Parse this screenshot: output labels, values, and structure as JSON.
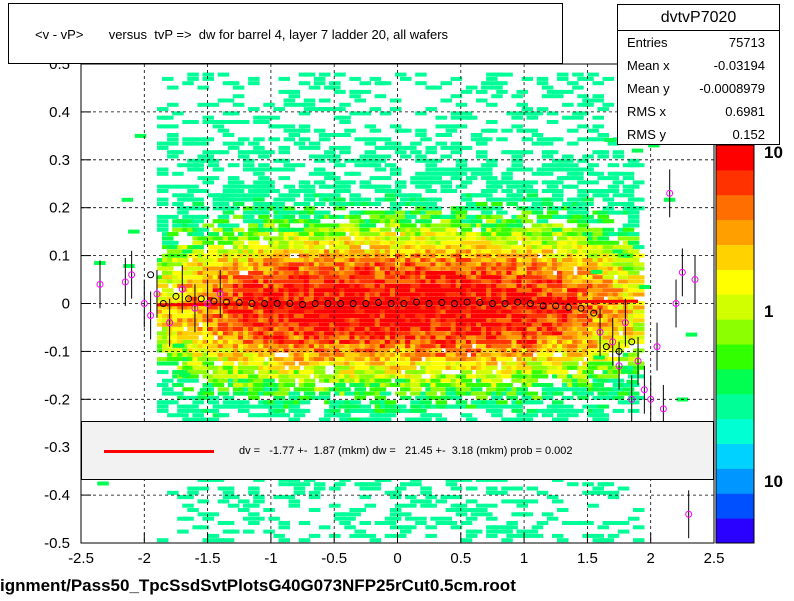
{
  "title": "<v - vP>       versus  tvP =>  dw for barrel 4, layer 7 ladder 20, all wafers",
  "footer": "ignment/Pass50_TpcSsdSvtPlotsG40G073NFP25rCut0.5cm.root",
  "stats": {
    "name": "dvtvP7020",
    "rows": [
      {
        "label": "Entries",
        "value": "75713"
      },
      {
        "label": "Mean x",
        "value": "-0.03194"
      },
      {
        "label": "Mean y",
        "value": "-0.0008979"
      },
      {
        "label": "RMS x",
        "value": "0.6981"
      },
      {
        "label": "RMS y",
        "value": "0.152"
      }
    ]
  },
  "fit_legend": {
    "text": "dv =   -1.77 +-  1.87 (mkm) dw =   21.45 +-  3.18 (mkm) prob = 0.002",
    "line_color": "#ff0000"
  },
  "chart_data": {
    "type": "heatmap",
    "title": "<v - vP>       versus  tvP =>  dw for barrel 4, layer 7 ladder 20, all wafers",
    "xlim": [
      -2.5,
      2.5
    ],
    "ylim": [
      -0.5,
      0.5
    ],
    "x_ticks": [
      "-2.5",
      "-2",
      "-1.5",
      "-1",
      "-0.5",
      "0",
      "0.5",
      "1",
      "1.5",
      "2",
      "2.5"
    ],
    "y_ticks": [
      "-0.5",
      "-0.4",
      "-0.3",
      "-0.2",
      "-0.1",
      "0",
      "0.1",
      "0.2",
      "0.3",
      "0.4",
      "0.5"
    ],
    "grid": true,
    "colorbar": {
      "scale": "log",
      "tick_labels": [
        "10",
        "1",
        "10"
      ]
    },
    "density": {
      "x_range": [
        -1.9,
        1.9
      ],
      "y_center": 0.0,
      "y_rms": 0.152
    },
    "fit_line": {
      "x": [
        -1.9,
        1.9
      ],
      "y": [
        -0.003,
        0.005
      ],
      "color": "#ff0000"
    },
    "profile_black": {
      "x": [
        -1.95,
        -1.85,
        -1.75,
        -1.65,
        -1.55,
        -1.45,
        -1.35,
        -1.25,
        -1.15,
        -1.05,
        -0.95,
        -0.85,
        -0.75,
        -0.65,
        -0.55,
        -0.45,
        -0.35,
        -0.25,
        -0.15,
        -0.05,
        0.05,
        0.15,
        0.25,
        0.35,
        0.45,
        0.55,
        0.65,
        0.75,
        0.85,
        0.95,
        1.05,
        1.15,
        1.25,
        1.35,
        1.45,
        1.55,
        1.65,
        1.75,
        1.85
      ],
      "y": [
        0.06,
        0.0,
        0.015,
        0.01,
        0.01,
        0.005,
        0.003,
        0.002,
        0.0,
        0.0,
        0.0,
        0.0,
        -0.002,
        0.0,
        0.0,
        0.0,
        0.0,
        0.0,
        0.002,
        0.0,
        0.0,
        0.003,
        0.0,
        0.002,
        0.0,
        0.003,
        0.002,
        0.0,
        0.0,
        0.003,
        0.0,
        -0.005,
        -0.005,
        -0.008,
        -0.01,
        -0.02,
        -0.09,
        -0.1,
        -0.08
      ]
    },
    "profile_magenta": {
      "x": [
        -2.35,
        -2.15,
        -2.1,
        -2.0,
        -1.95,
        -1.9,
        -1.8,
        -1.7,
        -1.6,
        -1.5,
        -1.4,
        1.6,
        1.7,
        1.75,
        1.8,
        1.85,
        1.9,
        1.95,
        2.0,
        2.05,
        2.1,
        2.15,
        2.2,
        2.25,
        2.3,
        2.35
      ],
      "y": [
        0.04,
        0.045,
        0.06,
        0.0,
        -0.025,
        0.02,
        -0.04,
        0.03,
        -0.01,
        0.0,
        0.02,
        -0.06,
        -0.08,
        -0.13,
        -0.04,
        -0.2,
        -0.12,
        -0.18,
        -0.2,
        -0.09,
        -0.22,
        0.23,
        0.0,
        0.065,
        -0.44,
        0.05
      ]
    }
  }
}
